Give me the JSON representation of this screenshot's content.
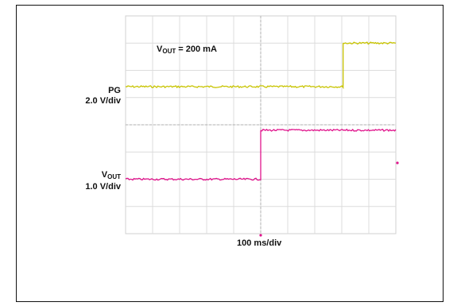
{
  "chart_data": {
    "type": "line",
    "annotation": {
      "text_main": "V",
      "text_sub": "OUT",
      "text_rest": " = 200 mA"
    },
    "xlabel": "100 ms/div",
    "x_divisions": 10,
    "y_divisions": 8,
    "xlim": [
      0,
      10
    ],
    "ylim": [
      0,
      8
    ],
    "trigger_x": 5.0,
    "series": [
      {
        "key": "pg",
        "label_main": "PG",
        "label_sub": "",
        "label_scale": "2.0 V/div",
        "color": "#c8c400",
        "points": [
          [
            0,
            5.4
          ],
          [
            8.05,
            5.4
          ],
          [
            8.05,
            7.0
          ],
          [
            10,
            7.0
          ]
        ]
      },
      {
        "key": "vout",
        "label_main": "V",
        "label_sub": "OUT",
        "label_scale": "1.0 V/div",
        "color": "#e0148c",
        "points": [
          [
            0,
            2.0
          ],
          [
            5.0,
            2.0
          ],
          [
            5.0,
            3.8
          ],
          [
            10,
            3.8
          ]
        ]
      }
    ],
    "grid": true
  }
}
